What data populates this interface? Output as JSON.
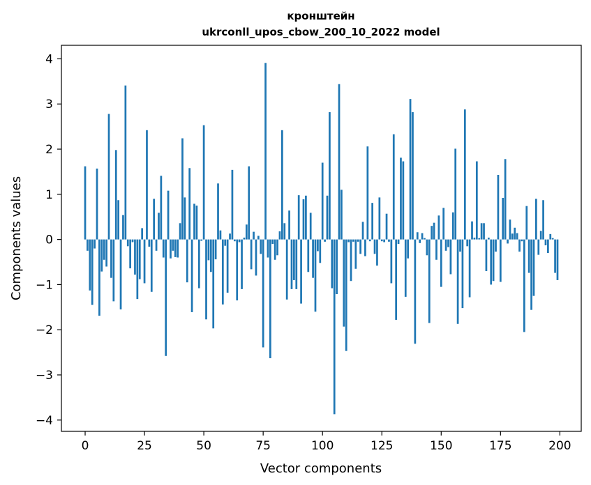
{
  "chart_data": {
    "type": "bar",
    "title": "кронштейн",
    "subtitle": "ukrconll_upos_cbow_200_10_2022 model",
    "xlabel": "Vector components",
    "ylabel": "Components values",
    "xlim": [
      -10,
      209
    ],
    "ylim": [
      -4.25,
      4.3
    ],
    "xticks": [
      0,
      25,
      50,
      75,
      100,
      125,
      150,
      175,
      200
    ],
    "xtick_labels": [
      "0",
      "25",
      "50",
      "75",
      "100",
      "125",
      "150",
      "175",
      "200"
    ],
    "yticks": [
      -4,
      -3,
      -2,
      -1,
      0,
      1,
      2,
      3,
      4
    ],
    "ytick_labels": [
      "−4",
      "−3",
      "−2",
      "−1",
      "0",
      "1",
      "2",
      "3",
      "4"
    ],
    "grid": false,
    "bar_color": "#1f77b4",
    "x": [
      0,
      1,
      2,
      3,
      4,
      5,
      6,
      7,
      8,
      9,
      10,
      11,
      12,
      13,
      14,
      15,
      16,
      17,
      18,
      19,
      20,
      21,
      22,
      23,
      24,
      25,
      26,
      27,
      28,
      29,
      30,
      31,
      32,
      33,
      34,
      35,
      36,
      37,
      38,
      39,
      40,
      41,
      42,
      43,
      44,
      45,
      46,
      47,
      48,
      49,
      50,
      51,
      52,
      53,
      54,
      55,
      56,
      57,
      58,
      59,
      60,
      61,
      62,
      63,
      64,
      65,
      66,
      67,
      68,
      69,
      70,
      71,
      72,
      73,
      74,
      75,
      76,
      77,
      78,
      79,
      80,
      81,
      82,
      83,
      84,
      85,
      86,
      87,
      88,
      89,
      90,
      91,
      92,
      93,
      94,
      95,
      96,
      97,
      98,
      99,
      100,
      101,
      102,
      103,
      104,
      105,
      106,
      107,
      108,
      109,
      110,
      111,
      112,
      113,
      114,
      115,
      116,
      117,
      118,
      119,
      120,
      121,
      122,
      123,
      124,
      125,
      126,
      127,
      128,
      129,
      130,
      131,
      132,
      133,
      134,
      135,
      136,
      137,
      138,
      139,
      140,
      141,
      142,
      143,
      144,
      145,
      146,
      147,
      148,
      149,
      150,
      151,
      152,
      153,
      154,
      155,
      156,
      157,
      158,
      159,
      160,
      161,
      162,
      163,
      164,
      165,
      166,
      167,
      168,
      169,
      170,
      171,
      172,
      173,
      174,
      175,
      176,
      177,
      178,
      179,
      180,
      181,
      182,
      183,
      184,
      185,
      186,
      187,
      188,
      189,
      190,
      191,
      192,
      193,
      194,
      195,
      196,
      197,
      198,
      199
    ],
    "values": [
      1.62,
      -0.25,
      -1.13,
      -1.45,
      -0.2,
      1.57,
      -1.69,
      -0.71,
      -0.45,
      -0.6,
      2.78,
      -0.85,
      -1.37,
      1.98,
      0.87,
      -1.55,
      0.54,
      3.41,
      -0.15,
      -0.64,
      -0.06,
      -0.78,
      -1.32,
      -0.88,
      0.25,
      -0.97,
      2.42,
      -0.16,
      -1.16,
      0.9,
      -0.25,
      0.59,
      1.41,
      -0.4,
      -2.58,
      1.08,
      -0.42,
      -0.25,
      -0.39,
      -0.4,
      0.36,
      2.24,
      0.93,
      -0.95,
      1.58,
      -1.61,
      0.79,
      0.75,
      -1.08,
      -0.03,
      2.53,
      -1.77,
      -0.46,
      -0.72,
      -1.97,
      -0.44,
      1.24,
      0.2,
      -1.44,
      -0.14,
      -1.18,
      0.13,
      1.54,
      -0.04,
      -1.35,
      -0.06,
      -1.1,
      0.04,
      0.33,
      1.62,
      -0.66,
      0.17,
      -0.8,
      0.08,
      -0.32,
      -2.39,
      3.91,
      -0.4,
      -2.63,
      -0.1,
      -0.45,
      -0.35,
      0.18,
      2.42,
      0.36,
      -1.33,
      0.64,
      -1.1,
      -0.9,
      -1.1,
      0.98,
      -1.42,
      0.89,
      0.97,
      -0.72,
      0.59,
      -0.85,
      -1.6,
      -0.26,
      -0.52,
      1.7,
      -0.05,
      0.97,
      2.82,
      -1.08,
      -3.87,
      -1.21,
      3.44,
      1.1,
      -1.93,
      -2.47,
      -0.06,
      -0.92,
      -0.05,
      -0.65,
      -0.05,
      -0.32,
      0.39,
      -0.37,
      2.06,
      -0.04,
      0.81,
      -0.32,
      -0.58,
      0.93,
      -0.04,
      -0.06,
      0.57,
      -0.05,
      -0.97,
      2.33,
      -1.78,
      -0.1,
      1.81,
      1.73,
      -1.27,
      -0.42,
      3.11,
      2.82,
      -2.31,
      0.16,
      -0.08,
      0.14,
      0.03,
      -0.35,
      -1.85,
      0.3,
      0.37,
      -0.45,
      0.53,
      -1.05,
      0.7,
      -0.25,
      -0.17,
      -0.77,
      0.6,
      2.01,
      -1.87,
      -0.27,
      -1.52,
      2.88,
      -0.15,
      -1.28,
      0.4,
      0.04,
      1.73,
      0.03,
      0.36,
      0.36,
      -0.7,
      0.04,
      -1.0,
      -0.92,
      -0.27,
      1.43,
      -0.94,
      0.92,
      1.78,
      -0.09,
      0.44,
      0.13,
      0.26,
      0.14,
      -0.27,
      -0.04,
      -2.05,
      0.74,
      -0.74,
      -1.56,
      -1.25,
      0.9,
      -0.34,
      0.19,
      0.87,
      -0.13,
      -0.3,
      0.12,
      0.03,
      -0.74,
      -0.9
    ]
  }
}
